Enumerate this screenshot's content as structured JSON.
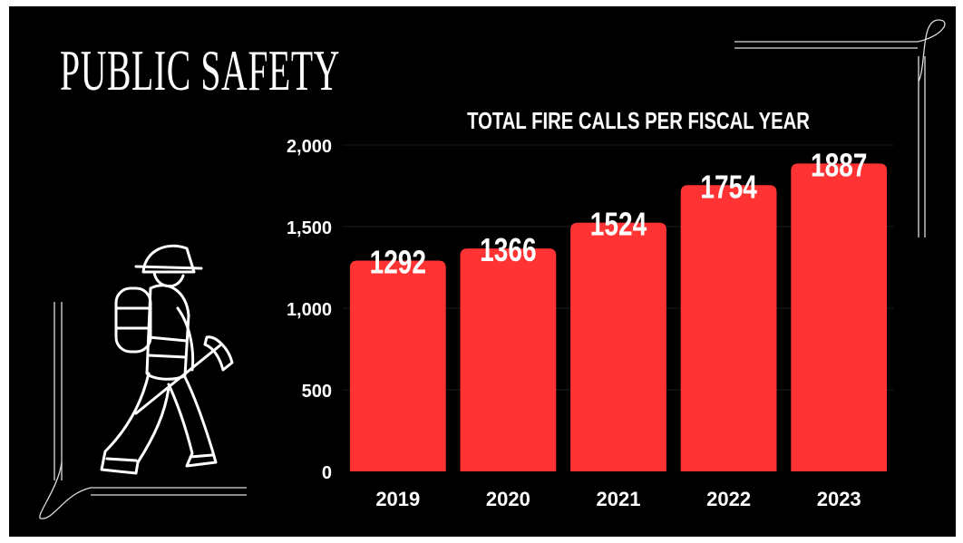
{
  "page": {
    "title": "PUBLIC SAFETY"
  },
  "colors": {
    "background": "#000000",
    "bar": "#ff3333",
    "text": "#ffffff",
    "gridline": "#1c1c1c"
  },
  "illustration": "firefighter-icon",
  "chart_data": {
    "type": "bar",
    "title": "TOTAL FIRE CALLS PER FISCAL YEAR",
    "xlabel": "",
    "ylabel": "",
    "categories": [
      "2019",
      "2020",
      "2021",
      "2022",
      "2023"
    ],
    "values": [
      1292,
      1366,
      1524,
      1754,
      1887
    ],
    "value_labels": [
      "1292",
      "1366",
      "1524",
      "1754",
      "1887"
    ],
    "ylim": [
      0,
      2000
    ],
    "yticks": [
      0,
      500,
      1000,
      1500,
      2000
    ],
    "ytick_labels": [
      "0",
      "500",
      "1,000",
      "1,500",
      "2,000"
    ],
    "grid": true,
    "legend": "none"
  }
}
